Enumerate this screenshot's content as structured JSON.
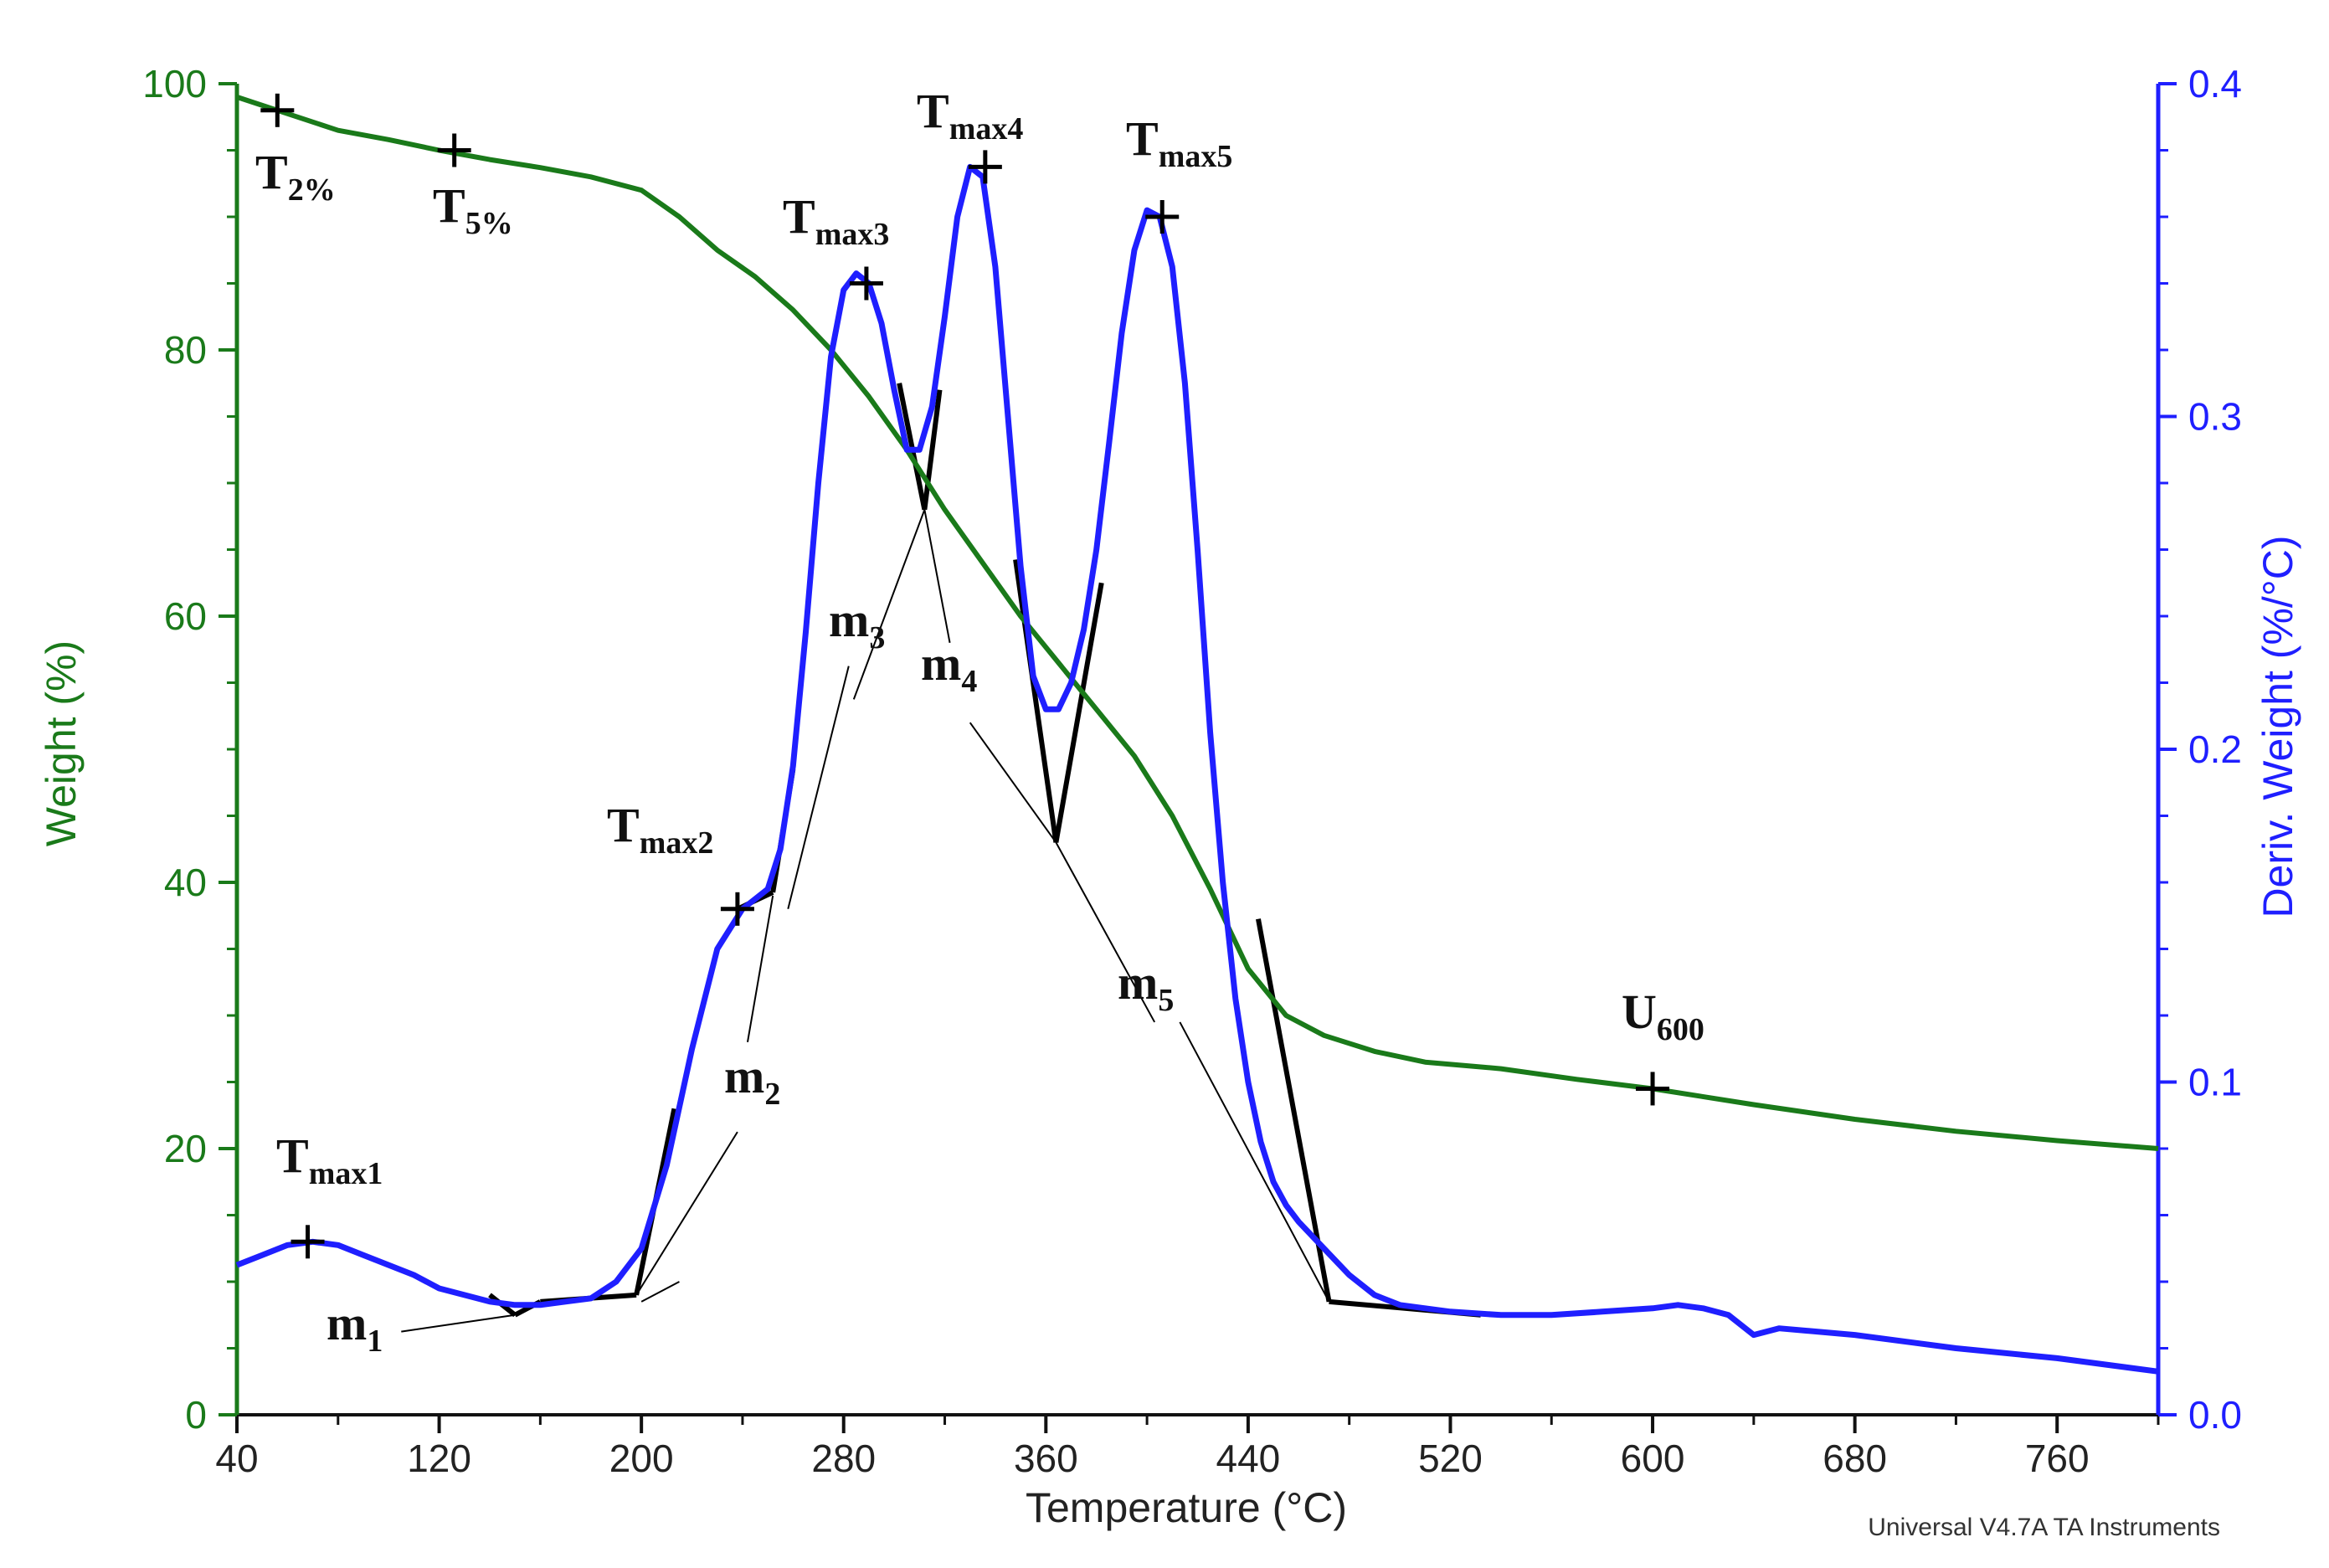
{
  "chart_data": {
    "type": "line",
    "credit": "Universal V4.7A TA Instruments",
    "xlabel": "Temperature (°C)",
    "ylabel_left": "Weight (%)",
    "ylabel_right": "Deriv. Weight (%/°C)",
    "xlim": [
      40,
      800
    ],
    "ylim_left": [
      0,
      100
    ],
    "ylim_right": [
      0.0,
      0.4
    ],
    "x_ticks": [
      40,
      120,
      200,
      280,
      360,
      440,
      520,
      600,
      680,
      760
    ],
    "y_left_ticks": [
      "0",
      "20",
      "40",
      "60",
      "80",
      "100"
    ],
    "y_right_ticks": [
      "0.0",
      "0.1",
      "0.2",
      "0.3",
      "0.4"
    ],
    "colors": {
      "weight": "#1a7a1a",
      "derivative": "#1f1fff",
      "annotation": "#000000",
      "axis_left": "#1a7a1a",
      "axis_right": "#1f1fff"
    },
    "series": [
      {
        "name": "Weight",
        "axis": "left",
        "x": [
          40,
          56,
          80,
          100,
          120,
          140,
          160,
          180,
          200,
          215,
          230,
          245,
          260,
          275,
          290,
          305,
          320,
          335,
          350,
          365,
          380,
          395,
          410,
          425,
          440,
          455,
          470,
          490,
          510,
          540,
          570,
          600,
          640,
          680,
          720,
          760,
          800
        ],
        "y": [
          99,
          98,
          96.5,
          95.8,
          95,
          94.3,
          93.7,
          93.0,
          92.0,
          90.0,
          87.5,
          85.5,
          83.0,
          80.0,
          76.5,
          72.5,
          68.0,
          64.0,
          60.0,
          56.5,
          53.0,
          49.5,
          45.0,
          39.5,
          33.5,
          30.0,
          28.5,
          27.3,
          26.5,
          26.0,
          25.2,
          24.5,
          23.3,
          22.2,
          21.3,
          20.6,
          20.0
        ]
      },
      {
        "name": "Deriv. Weight",
        "axis": "right",
        "x": [
          40,
          50,
          60,
          70,
          80,
          90,
          100,
          110,
          120,
          130,
          140,
          150,
          160,
          170,
          180,
          190,
          200,
          210,
          220,
          230,
          240,
          250,
          255,
          260,
          265,
          270,
          275,
          280,
          285,
          290,
          295,
          300,
          305,
          310,
          315,
          320,
          325,
          330,
          335,
          340,
          345,
          350,
          355,
          360,
          365,
          370,
          375,
          380,
          385,
          390,
          395,
          400,
          405,
          410,
          415,
          420,
          425,
          430,
          435,
          440,
          445,
          450,
          455,
          460,
          470,
          480,
          490,
          500,
          510,
          520,
          540,
          560,
          580,
          600,
          610,
          620,
          630,
          640,
          650,
          680,
          720,
          760,
          800
        ],
        "y": [
          0.045,
          0.048,
          0.051,
          0.052,
          0.051,
          0.048,
          0.045,
          0.042,
          0.038,
          0.036,
          0.034,
          0.033,
          0.033,
          0.034,
          0.035,
          0.04,
          0.05,
          0.075,
          0.11,
          0.14,
          0.152,
          0.158,
          0.17,
          0.195,
          0.235,
          0.28,
          0.318,
          0.338,
          0.343,
          0.34,
          0.328,
          0.308,
          0.29,
          0.29,
          0.303,
          0.33,
          0.36,
          0.375,
          0.372,
          0.345,
          0.3,
          0.255,
          0.222,
          0.212,
          0.212,
          0.22,
          0.236,
          0.26,
          0.292,
          0.325,
          0.35,
          0.362,
          0.36,
          0.345,
          0.31,
          0.26,
          0.205,
          0.16,
          0.125,
          0.1,
          0.082,
          0.07,
          0.063,
          0.058,
          0.05,
          0.042,
          0.036,
          0.033,
          0.032,
          0.031,
          0.03,
          0.03,
          0.031,
          0.032,
          0.033,
          0.032,
          0.03,
          0.024,
          0.026,
          0.024,
          0.02,
          0.017,
          0.013
        ]
      }
    ],
    "markers": [
      {
        "label": "T",
        "sub": "2%",
        "x": 56,
        "y": 98,
        "axis": "left"
      },
      {
        "label": "T",
        "sub": "5%",
        "x": 126,
        "y": 95,
        "axis": "left"
      },
      {
        "label": "T",
        "sub": "max1",
        "x": 68,
        "y": 0.052,
        "axis": "right"
      },
      {
        "label": "T",
        "sub": "max2",
        "x": 238,
        "y": 0.152,
        "axis": "right"
      },
      {
        "label": "T",
        "sub": "max3",
        "x": 289,
        "y": 0.34,
        "axis": "right"
      },
      {
        "label": "T",
        "sub": "max4",
        "x": 336,
        "y": 0.375,
        "axis": "right"
      },
      {
        "label": "T",
        "sub": "max5",
        "x": 406,
        "y": 0.36,
        "axis": "right"
      },
      {
        "label": "U",
        "sub": "600",
        "x": 600,
        "y": 24.5,
        "axis": "left"
      }
    ],
    "m_labels": [
      {
        "label": "m",
        "sub": "1"
      },
      {
        "label": "m",
        "sub": "2"
      },
      {
        "label": "m",
        "sub": "3"
      },
      {
        "label": "m",
        "sub": "4"
      },
      {
        "label": "m",
        "sub": "5"
      }
    ]
  }
}
